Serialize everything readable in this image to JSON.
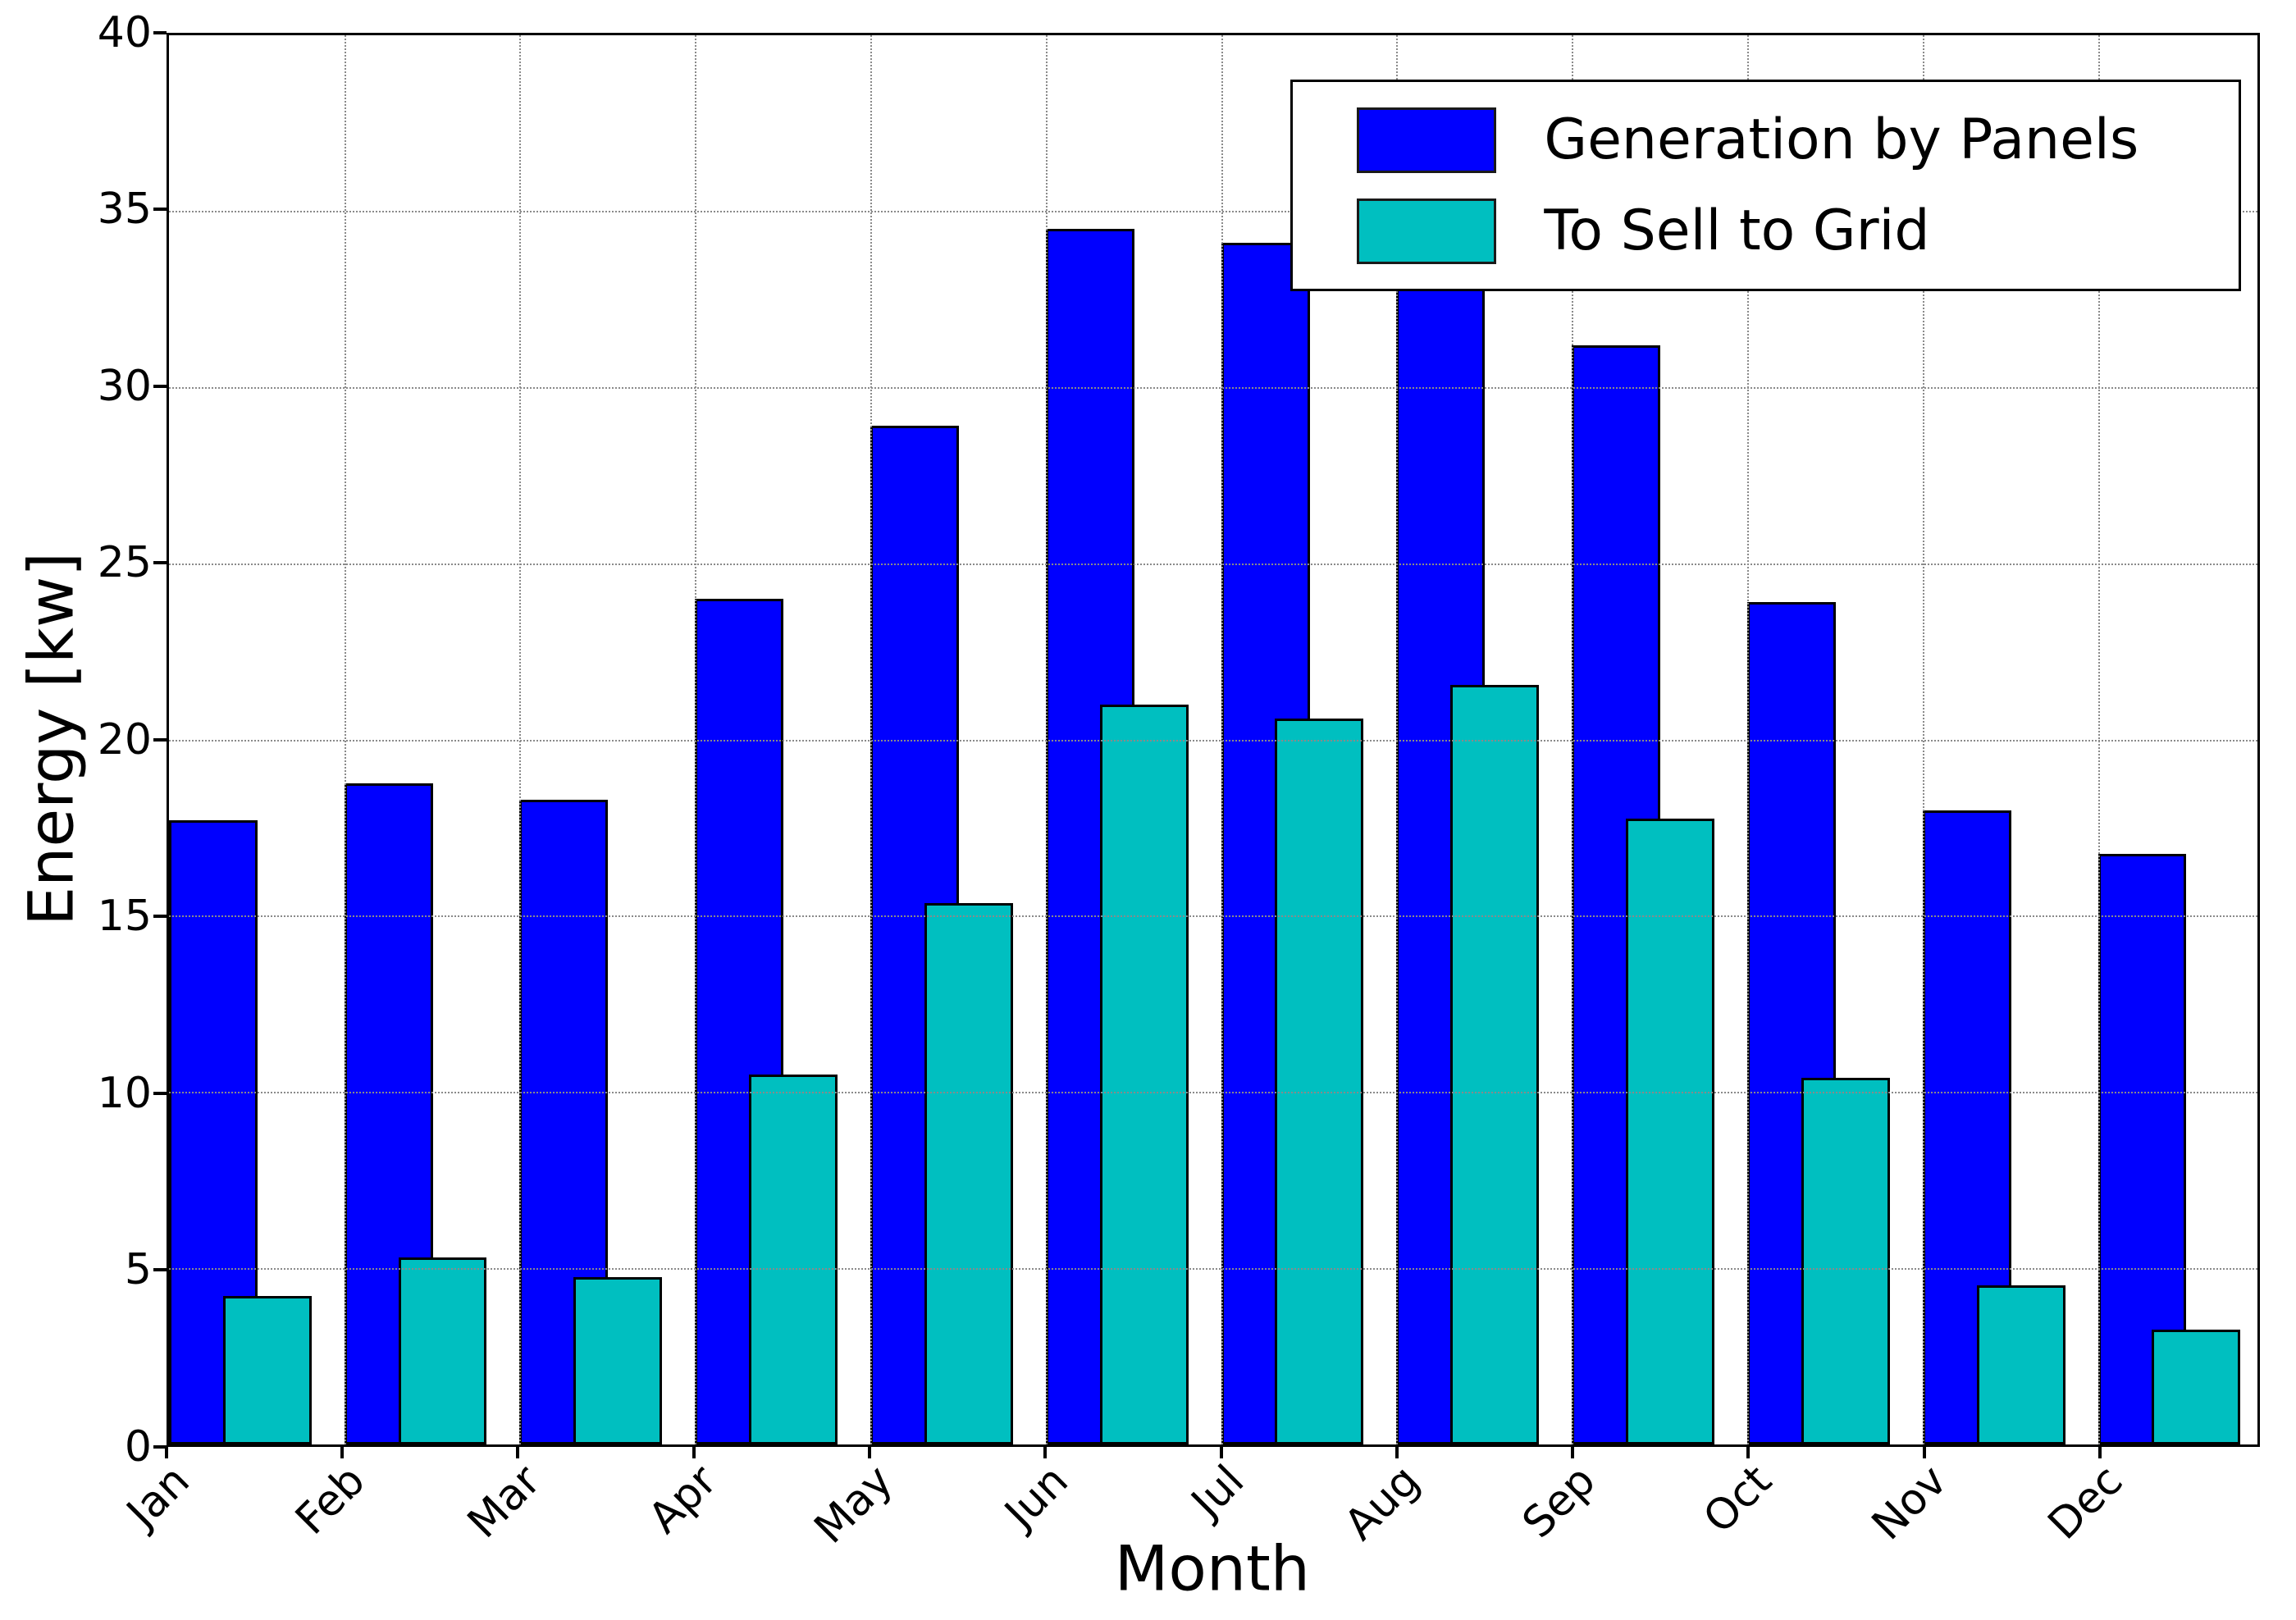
{
  "chart_data": {
    "type": "bar",
    "title": "",
    "xlabel": "Month",
    "ylabel": "Energy [kw]",
    "categories": [
      "Jan",
      "Feb",
      "Mar",
      "Apr",
      "May",
      "Jun",
      "Jul",
      "Aug",
      "Sep",
      "Oct",
      "Nov",
      "Dec"
    ],
    "series": [
      {
        "name": "Generation by Panels",
        "color": "#0000ff",
        "values": [
          17.7,
          18.75,
          18.3,
          24.0,
          28.9,
          34.5,
          34.1,
          32.9,
          31.2,
          23.9,
          18.0,
          16.75
        ]
      },
      {
        "name": "To Sell to Grid",
        "color": "#00bfc0",
        "values": [
          4.2,
          5.3,
          4.75,
          10.5,
          15.35,
          21.0,
          20.6,
          21.55,
          17.75,
          10.4,
          4.5,
          3.25
        ]
      }
    ],
    "ylim": [
      0,
      40
    ],
    "yticks": [
      0,
      5,
      10,
      15,
      20,
      25,
      30,
      35,
      40
    ],
    "grid": "dotted gray, horizontal and vertical, drawn over bars",
    "legend_position": "upper right",
    "bar_edge_color": "#000000",
    "bar_style": "second series overlaps first, offset right by ~60% of bar width"
  }
}
